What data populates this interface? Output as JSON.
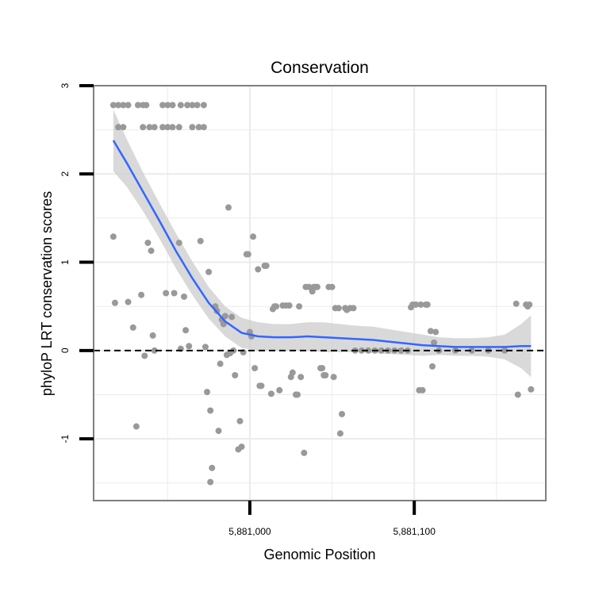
{
  "chart_data": {
    "type": "scatter",
    "title": "Conservation",
    "xlabel": "Genomic Position",
    "ylabel": "phyloP LRT conservation scores",
    "xlim": [
      5880905,
      5881180
    ],
    "ylim": [
      -1.7,
      3.0
    ],
    "x_ticks": [
      5881000,
      5881100
    ],
    "x_tick_labels": [
      "5,881,000",
      "5,881,100"
    ],
    "y_ticks": [
      -1,
      0,
      1,
      2,
      3
    ],
    "y_tick_labels": [
      "-1",
      "0",
      "1",
      "2",
      "3"
    ],
    "reference_line_y": 0,
    "grid": true,
    "colors": {
      "points": "#999999",
      "smooth": "#3366ff",
      "band": "#cccccc",
      "frame": "#7f7f7f",
      "grid": "#ebebeb"
    },
    "points": [
      [
        5880917,
        2.78
      ],
      [
        5880920,
        2.78
      ],
      [
        5880923,
        2.78
      ],
      [
        5880926,
        2.78
      ],
      [
        5880932,
        2.78
      ],
      [
        5880935,
        2.78
      ],
      [
        5880937,
        2.78
      ],
      [
        5880947,
        2.78
      ],
      [
        5880950,
        2.78
      ],
      [
        5880953,
        2.78
      ],
      [
        5880958,
        2.78
      ],
      [
        5880962,
        2.78
      ],
      [
        5880965,
        2.78
      ],
      [
        5880968,
        2.78
      ],
      [
        5880972,
        2.78
      ],
      [
        5880920,
        2.53
      ],
      [
        5880923,
        2.53
      ],
      [
        5880935,
        2.53
      ],
      [
        5880939,
        2.53
      ],
      [
        5880942,
        2.53
      ],
      [
        5880947,
        2.53
      ],
      [
        5880950,
        2.53
      ],
      [
        5880953,
        2.53
      ],
      [
        5880957,
        2.53
      ],
      [
        5880965,
        2.53
      ],
      [
        5880969,
        2.53
      ],
      [
        5880972,
        2.53
      ],
      [
        5880917,
        1.29
      ],
      [
        5880918,
        0.54
      ],
      [
        5880926,
        0.55
      ],
      [
        5880929,
        0.26
      ],
      [
        5880931,
        -0.86
      ],
      [
        5880934,
        0.63
      ],
      [
        5880936,
        -0.06
      ],
      [
        5880938,
        1.22
      ],
      [
        5880940,
        1.13
      ],
      [
        5880941,
        0.17
      ],
      [
        5880942,
        0.0
      ],
      [
        5880949,
        0.65
      ],
      [
        5880954,
        0.65
      ],
      [
        5880957,
        1.22
      ],
      [
        5880958,
        0.02
      ],
      [
        5880960,
        0.61
      ],
      [
        5880961,
        0.23
      ],
      [
        5880963,
        0.05
      ],
      [
        5880970,
        1.24
      ],
      [
        5880973,
        0.04
      ],
      [
        5880974,
        -0.47
      ],
      [
        5880975,
        0.89
      ],
      [
        5880976,
        -0.68
      ],
      [
        5880976,
        -1.49
      ],
      [
        5880977,
        -1.33
      ],
      [
        5880979,
        0.5
      ],
      [
        5880980,
        0.45
      ],
      [
        5880981,
        -0.91
      ],
      [
        5880982,
        -0.15
      ],
      [
        5880983,
        0.35
      ],
      [
        5880984,
        0.3
      ],
      [
        5880985,
        0.39
      ],
      [
        5880986,
        -0.05
      ],
      [
        5880987,
        1.62
      ],
      [
        5880988,
        -0.03
      ],
      [
        5880989,
        0.38
      ],
      [
        5880990,
        0.0
      ],
      [
        5880991,
        -0.28
      ],
      [
        5880993,
        -1.12
      ],
      [
        5880994,
        -0.8
      ],
      [
        5880995,
        -1.09
      ],
      [
        5880996,
        -0.02
      ],
      [
        5880998,
        1.09
      ],
      [
        5880999,
        1.09
      ],
      [
        5881000,
        0.21
      ],
      [
        5881001,
        0.16
      ],
      [
        5881002,
        1.29
      ],
      [
        5881003,
        -0.2
      ],
      [
        5881005,
        0.92
      ],
      [
        5881006,
        -0.4
      ],
      [
        5881007,
        -0.4
      ],
      [
        5881009,
        0.96
      ],
      [
        5881010,
        0.96
      ],
      [
        5881013,
        -0.49
      ],
      [
        5881014,
        0.47
      ],
      [
        5881015,
        0.5
      ],
      [
        5881016,
        0.5
      ],
      [
        5881018,
        -0.45
      ],
      [
        5881020,
        0.51
      ],
      [
        5881022,
        0.51
      ],
      [
        5881024,
        0.51
      ],
      [
        5881025,
        -0.3
      ],
      [
        5881026,
        -0.25
      ],
      [
        5881028,
        -0.5
      ],
      [
        5881029,
        -0.5
      ],
      [
        5881030,
        0.5
      ],
      [
        5881031,
        -0.3
      ],
      [
        5881033,
        -1.16
      ],
      [
        5881034,
        0.72
      ],
      [
        5881036,
        0.72
      ],
      [
        5881038,
        0.67
      ],
      [
        5881039,
        0.72
      ],
      [
        5881040,
        0.72
      ],
      [
        5881041,
        0.72
      ],
      [
        5881043,
        -0.2
      ],
      [
        5881044,
        -0.2
      ],
      [
        5881045,
        -0.28
      ],
      [
        5881046,
        -0.28
      ],
      [
        5881048,
        0.72
      ],
      [
        5881050,
        0.72
      ],
      [
        5881051,
        -0.3
      ],
      [
        5881052,
        0.48
      ],
      [
        5881054,
        0.48
      ],
      [
        5881055,
        -0.94
      ],
      [
        5881056,
        -0.72
      ],
      [
        5881058,
        0.48
      ],
      [
        5881059,
        0.46
      ],
      [
        5881061,
        0.48
      ],
      [
        5881063,
        0.48
      ],
      [
        5881064,
        0.0
      ],
      [
        5881068,
        0.0
      ],
      [
        5881072,
        0.0
      ],
      [
        5881076,
        0.0
      ],
      [
        5881080,
        0.0
      ],
      [
        5881084,
        0.0
      ],
      [
        5881088,
        0.0
      ],
      [
        5881092,
        0.0
      ],
      [
        5881096,
        0.0
      ],
      [
        5881098,
        0.49
      ],
      [
        5881099,
        0.52
      ],
      [
        5881101,
        0.52
      ],
      [
        5881103,
        -0.45
      ],
      [
        5881104,
        0.52
      ],
      [
        5881105,
        -0.45
      ],
      [
        5881107,
        0.52
      ],
      [
        5881108,
        0.52
      ],
      [
        5881110,
        0.22
      ],
      [
        5881111,
        -0.18
      ],
      [
        5881112,
        0.09
      ],
      [
        5881113,
        0.21
      ],
      [
        5881115,
        0.0
      ],
      [
        5881125,
        0.0
      ],
      [
        5881135,
        0.0
      ],
      [
        5881145,
        0.0
      ],
      [
        5881155,
        0.0
      ],
      [
        5881162,
        0.53
      ],
      [
        5881163,
        -0.5
      ],
      [
        5881168,
        0.52
      ],
      [
        5881169,
        0.5
      ],
      [
        5881170,
        0.52
      ],
      [
        5881171,
        -0.44
      ]
    ],
    "smooth": [
      [
        5880917,
        2.38
      ],
      [
        5880925,
        2.13
      ],
      [
        5880935,
        1.8
      ],
      [
        5880945,
        1.47
      ],
      [
        5880955,
        1.13
      ],
      [
        5880965,
        0.82
      ],
      [
        5880975,
        0.54
      ],
      [
        5880985,
        0.33
      ],
      [
        5880995,
        0.2
      ],
      [
        5881005,
        0.16
      ],
      [
        5881015,
        0.15
      ],
      [
        5881025,
        0.15
      ],
      [
        5881035,
        0.16
      ],
      [
        5881045,
        0.15
      ],
      [
        5881055,
        0.14
      ],
      [
        5881065,
        0.13
      ],
      [
        5881075,
        0.12
      ],
      [
        5881085,
        0.1
      ],
      [
        5881095,
        0.08
      ],
      [
        5881105,
        0.06
      ],
      [
        5881115,
        0.05
      ],
      [
        5881125,
        0.04
      ],
      [
        5881135,
        0.04
      ],
      [
        5881145,
        0.04
      ],
      [
        5881155,
        0.04
      ],
      [
        5881165,
        0.05
      ],
      [
        5881171,
        0.05
      ]
    ],
    "band_upper": [
      [
        5880917,
        2.73
      ],
      [
        5880925,
        2.4
      ],
      [
        5880935,
        2.02
      ],
      [
        5880945,
        1.67
      ],
      [
        5880955,
        1.33
      ],
      [
        5880965,
        1.01
      ],
      [
        5880975,
        0.72
      ],
      [
        5880985,
        0.5
      ],
      [
        5880995,
        0.37
      ],
      [
        5881005,
        0.32
      ],
      [
        5881015,
        0.3
      ],
      [
        5881025,
        0.3
      ],
      [
        5881035,
        0.32
      ],
      [
        5881045,
        0.32
      ],
      [
        5881055,
        0.3
      ],
      [
        5881065,
        0.28
      ],
      [
        5881075,
        0.27
      ],
      [
        5881085,
        0.24
      ],
      [
        5881095,
        0.21
      ],
      [
        5881105,
        0.18
      ],
      [
        5881115,
        0.15
      ],
      [
        5881125,
        0.14
      ],
      [
        5881135,
        0.14
      ],
      [
        5881145,
        0.15
      ],
      [
        5881155,
        0.18
      ],
      [
        5881165,
        0.3
      ],
      [
        5881171,
        0.4
      ]
    ],
    "band_lower": [
      [
        5880917,
        2.03
      ],
      [
        5880925,
        1.86
      ],
      [
        5880935,
        1.58
      ],
      [
        5880945,
        1.27
      ],
      [
        5880955,
        0.93
      ],
      [
        5880965,
        0.63
      ],
      [
        5880975,
        0.36
      ],
      [
        5880985,
        0.16
      ],
      [
        5880995,
        0.03
      ],
      [
        5881005,
        0.0
      ],
      [
        5881015,
        0.0
      ],
      [
        5881025,
        0.0
      ],
      [
        5881035,
        0.0
      ],
      [
        5881045,
        -0.02
      ],
      [
        5881055,
        -0.02
      ],
      [
        5881065,
        -0.02
      ],
      [
        5881075,
        -0.03
      ],
      [
        5881085,
        -0.04
      ],
      [
        5881095,
        -0.05
      ],
      [
        5881105,
        -0.06
      ],
      [
        5881115,
        -0.05
      ],
      [
        5881125,
        -0.06
      ],
      [
        5881135,
        -0.06
      ],
      [
        5881145,
        -0.07
      ],
      [
        5881155,
        -0.1
      ],
      [
        5881165,
        -0.2
      ],
      [
        5881171,
        -0.3
      ]
    ]
  }
}
